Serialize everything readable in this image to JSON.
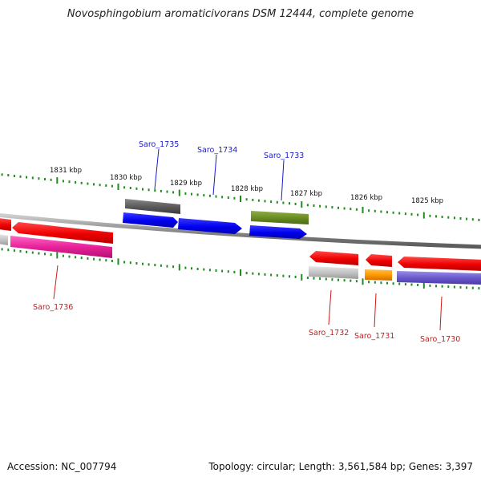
{
  "title": "Novosphingobium aromaticivorans DSM 12444, complete genome",
  "footer": {
    "accession": "Accession: NC_007794",
    "summary": "Topology: circular; Length: 3,561,584 bp; Genes: 3,397"
  },
  "colors": {
    "ruler": "#1f8c1f",
    "forward_label": "#1a1acc",
    "reverse_label": "#cc1a1a",
    "backbone": "#8a8a8a"
  },
  "ruler_labels": [
    "1831 kbp",
    "1830 kbp",
    "1829 kbp",
    "1828 kbp",
    "1827 kbp",
    "1826 kbp",
    "1825 kbp"
  ],
  "genes": [
    {
      "locus": "Saro_1735",
      "strand": "forward"
    },
    {
      "locus": "Saro_1734",
      "strand": "forward"
    },
    {
      "locus": "Saro_1733",
      "strand": "forward"
    },
    {
      "locus": "Saro_1736",
      "strand": "reverse"
    },
    {
      "locus": "Saro_1732",
      "strand": "reverse"
    },
    {
      "locus": "Saro_1731",
      "strand": "reverse"
    },
    {
      "locus": "Saro_1730",
      "strand": "reverse"
    }
  ]
}
